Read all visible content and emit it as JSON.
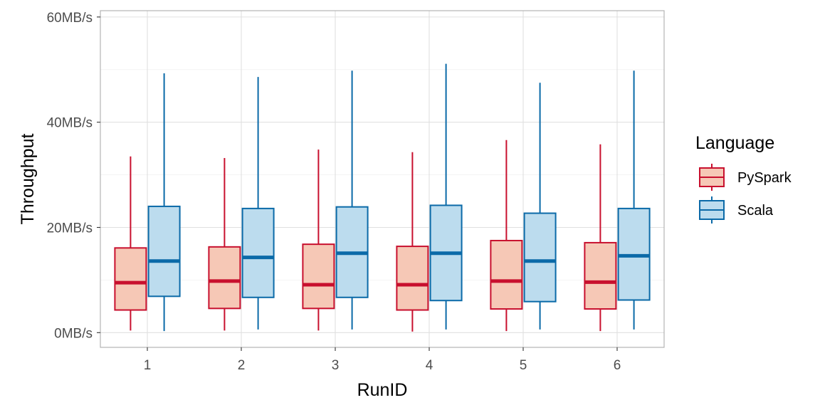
{
  "chart_data": {
    "type": "box",
    "xlabel": "RunID",
    "ylabel": "Throughput",
    "categories": [
      "1",
      "2",
      "3",
      "4",
      "5",
      "6"
    ],
    "ylim": [
      -2.8,
      61.2
    ],
    "yticks": [
      0,
      20,
      40,
      60
    ],
    "ytick_labels": [
      "0MB/s",
      "20MB/s",
      "40MB/s",
      "60MB/s"
    ],
    "grid": true,
    "legend": {
      "title": "Language",
      "position": "right"
    },
    "series": [
      {
        "name": "PySpark",
        "stroke": "#c8102e",
        "fill": "#f6c8b6",
        "boxes": [
          {
            "min": 0.4,
            "q1": 4.3,
            "median": 9.5,
            "q3": 16.1,
            "max": 33.5
          },
          {
            "min": 0.4,
            "q1": 4.6,
            "median": 9.8,
            "q3": 16.3,
            "max": 33.2
          },
          {
            "min": 0.4,
            "q1": 4.6,
            "median": 9.1,
            "q3": 16.8,
            "max": 34.8
          },
          {
            "min": 0.2,
            "q1": 4.3,
            "median": 9.1,
            "q3": 16.4,
            "max": 34.3
          },
          {
            "min": 0.3,
            "q1": 4.5,
            "median": 9.8,
            "q3": 17.5,
            "max": 36.6
          },
          {
            "min": 0.3,
            "q1": 4.5,
            "median": 9.6,
            "q3": 17.1,
            "max": 35.8
          }
        ]
      },
      {
        "name": "Scala",
        "stroke": "#0b6aa8",
        "fill": "#bcdcee",
        "boxes": [
          {
            "min": 0.3,
            "q1": 6.9,
            "median": 13.6,
            "q3": 24.0,
            "max": 49.3
          },
          {
            "min": 0.6,
            "q1": 6.7,
            "median": 14.3,
            "q3": 23.6,
            "max": 48.6
          },
          {
            "min": 0.6,
            "q1": 6.7,
            "median": 15.1,
            "q3": 23.9,
            "max": 49.8
          },
          {
            "min": 0.6,
            "q1": 6.1,
            "median": 15.1,
            "q3": 24.2,
            "max": 51.1
          },
          {
            "min": 0.6,
            "q1": 5.9,
            "median": 13.6,
            "q3": 22.7,
            "max": 47.5
          },
          {
            "min": 0.6,
            "q1": 6.2,
            "median": 14.6,
            "q3": 23.6,
            "max": 49.8
          }
        ]
      }
    ]
  }
}
